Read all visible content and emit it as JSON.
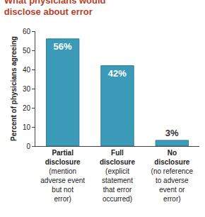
{
  "chart_data": {
    "type": "bar",
    "title": "What physicians would disclose about error",
    "y_label": "Percent of physicians agreeing",
    "categories": [
      "Partial disclosure\n(mention adverse event but not error)",
      "Full disclosure\n(explicit statement that error occurred)",
      "No disclosure\n(no reference to adverse event or error)"
    ],
    "values": [
      56,
      42,
      3
    ],
    "value_labels": [
      "56%",
      "42%",
      "3%"
    ],
    "color": "#3a9ab8",
    "ylim": [
      0,
      60
    ],
    "yticks": [
      0,
      10,
      20,
      30,
      40,
      50,
      60
    ],
    "grid": false,
    "data_labels": true
  }
}
